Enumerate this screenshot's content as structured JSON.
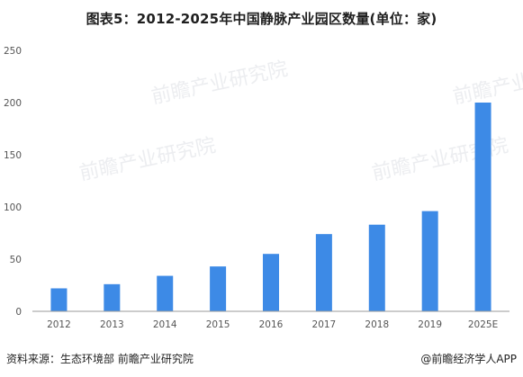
{
  "header": {
    "title": "图表5：2012-2025年中国静脉产业园区数量(单位：家)"
  },
  "footer": {
    "source": "资料来源：生态环境部 前瞻产业研究院",
    "brand": "@前瞻经济学人APP"
  },
  "watermark": {
    "text": "前瞻产业研究院"
  },
  "colors": {
    "bar": "#3d8ae6",
    "axis": "#999999",
    "text": "#555555"
  },
  "chart_data": {
    "type": "bar",
    "title": "图表5：2012-2025年中国静脉产业园区数量(单位：家)",
    "categories": [
      "2012",
      "2013",
      "2014",
      "2015",
      "2016",
      "2017",
      "2018",
      "2019",
      "2025E"
    ],
    "values": [
      22,
      26,
      34,
      43,
      55,
      74,
      83,
      96,
      200
    ],
    "ylim": [
      0,
      250
    ],
    "yticks": [
      0,
      50,
      100,
      150,
      200,
      250
    ],
    "xlabel": "",
    "ylabel": "",
    "grid": false,
    "legend": "none"
  }
}
